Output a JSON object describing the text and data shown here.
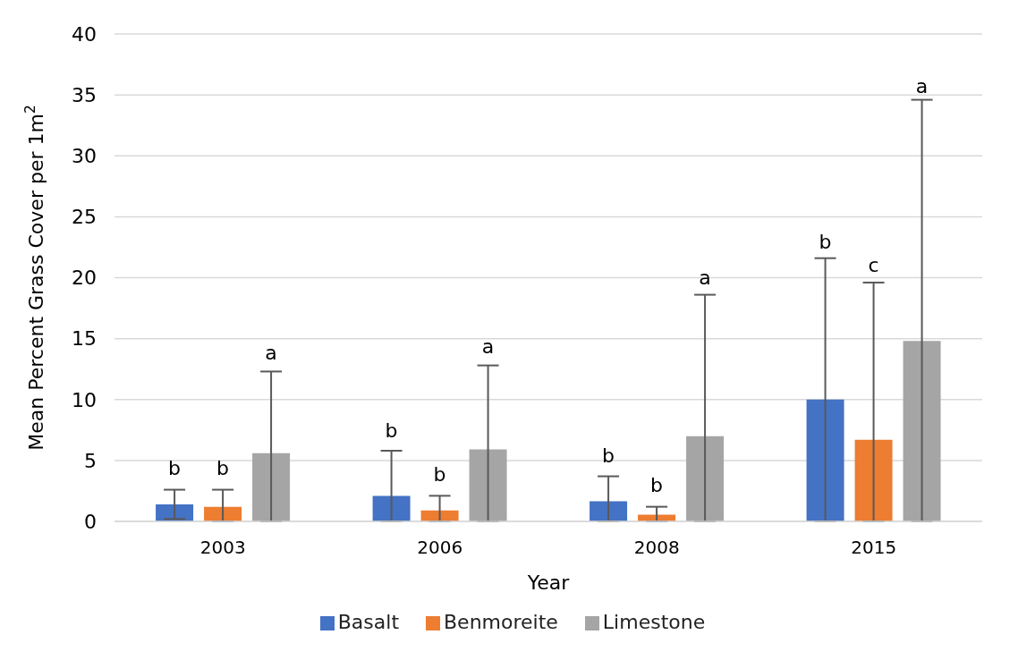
{
  "chart_data": {
    "type": "bar",
    "xlabel": "Year",
    "ylabel": "Mean Percent Grass Cover per 1m$^{2}$",
    "categories": [
      "2003",
      "2006",
      "2008",
      "2015"
    ],
    "series": [
      {
        "name": "Basalt",
        "color": "#4472c4",
        "values": [
          1.4,
          2.1,
          1.66,
          10.0
        ],
        "errors": [
          [
            0.2,
            2.6
          ],
          [
            0,
            5.8
          ],
          [
            0,
            3.7
          ],
          [
            0,
            21.6
          ]
        ]
      },
      {
        "name": "Benmoreite",
        "color": "#ed7d31",
        "values": [
          1.2,
          0.9,
          0.55,
          6.7
        ],
        "errors": [
          [
            0,
            2.6
          ],
          [
            0,
            2.1
          ],
          [
            0,
            1.2
          ],
          [
            0,
            19.6
          ]
        ]
      },
      {
        "name": "Limestone",
        "color": "#a5a5a5",
        "values": [
          5.6,
          5.9,
          7.0,
          14.8
        ],
        "errors": [
          [
            0,
            12.3
          ],
          [
            0,
            12.8
          ],
          [
            0,
            18.6
          ],
          [
            0,
            34.6
          ]
        ]
      }
    ],
    "annotations": [
      "b",
      "b",
      "a",
      "b",
      "b",
      "a",
      "b",
      "b",
      "a",
      "b",
      "c",
      "a"
    ],
    "ylim": [
      0,
      40
    ],
    "yticks": [
      0,
      5,
      10,
      15,
      20,
      25,
      30,
      35,
      40
    ],
    "grid": "y",
    "legend": "bottom"
  }
}
